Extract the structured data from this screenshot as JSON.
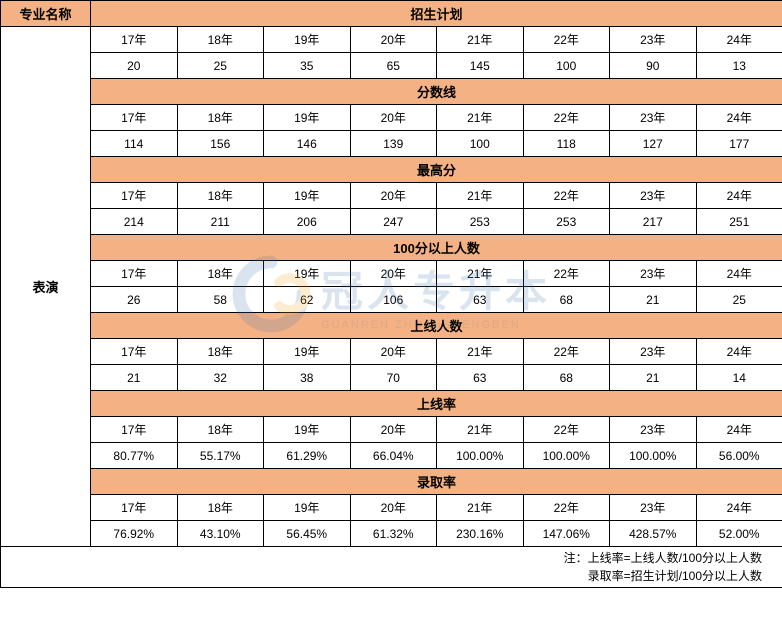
{
  "header": {
    "major_name_label": "专业名称",
    "major_name": "表演"
  },
  "years": [
    "17年",
    "18年",
    "19年",
    "20年",
    "21年",
    "22年",
    "23年",
    "24年"
  ],
  "sections": [
    {
      "title": "招生计划",
      "values": [
        "20",
        "25",
        "35",
        "65",
        "145",
        "100",
        "90",
        "13"
      ]
    },
    {
      "title": "分数线",
      "values": [
        "114",
        "156",
        "146",
        "139",
        "100",
        "118",
        "127",
        "177"
      ]
    },
    {
      "title": "最高分",
      "values": [
        "214",
        "211",
        "206",
        "247",
        "253",
        "253",
        "217",
        "251"
      ]
    },
    {
      "title": "100分以上人数",
      "values": [
        "26",
        "58",
        "62",
        "106",
        "63",
        "68",
        "21",
        "25"
      ]
    },
    {
      "title": "上线人数",
      "values": [
        "21",
        "32",
        "38",
        "70",
        "63",
        "68",
        "21",
        "14"
      ]
    },
    {
      "title": "上线率",
      "values": [
        "80.77%",
        "55.17%",
        "61.29%",
        "66.04%",
        "100.00%",
        "100.00%",
        "100.00%",
        "56.00%"
      ]
    },
    {
      "title": "录取率",
      "values": [
        "76.92%",
        "43.10%",
        "56.45%",
        "61.32%",
        "230.16%",
        "147.06%",
        "428.57%",
        "52.00%"
      ]
    }
  ],
  "note_line1": "注：上线率=上线人数/100分以上人数",
  "note_line2": "录取率=招生计划/100分以上人数",
  "watermark": {
    "main_text": "冠人专升本",
    "sub_text": "GUANREN ZHUANSHENGBEN",
    "logo_color_outer": "#4a7bb5",
    "logo_color_inner": "#f5a623"
  },
  "colors": {
    "header_bg": "#f4b183",
    "border": "#000000",
    "cell_bg": "#ffffff"
  }
}
